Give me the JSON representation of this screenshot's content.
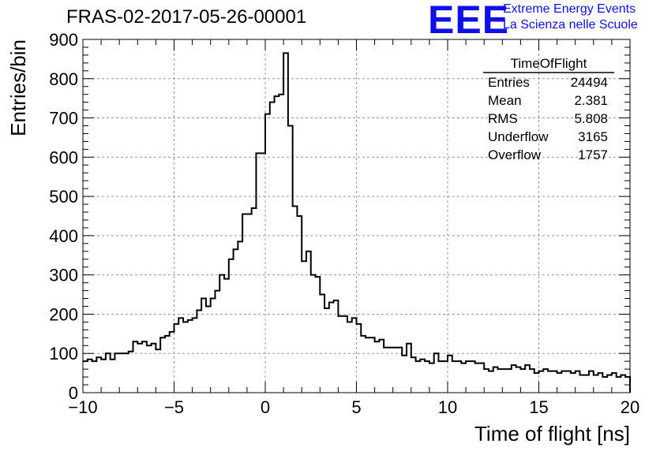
{
  "header": {
    "title": "FRAS-02-2017-05-26-00001",
    "logo_text": "EEE",
    "logo_line1": "Extreme Energy Events",
    "logo_line2": "La Scienza nelle Scuole"
  },
  "stats_box": {
    "title": "TimeOfFlight",
    "rows": [
      {
        "label": "Entries",
        "value": "24494"
      },
      {
        "label": "Mean",
        "value": "2.381"
      },
      {
        "label": "RMS",
        "value": "5.808"
      },
      {
        "label": "Underflow",
        "value": "3165"
      },
      {
        "label": "Overflow",
        "value": "1757"
      }
    ]
  },
  "chart_data": {
    "type": "histogram",
    "title": "FRAS-02-2017-05-26-00001",
    "xlabel": "Time of flight [ns]",
    "ylabel": "Entries/bin",
    "xlim": [
      -10,
      20
    ],
    "ylim": [
      0,
      900
    ],
    "x_ticks": [
      -10,
      -5,
      0,
      5,
      10,
      15,
      20
    ],
    "y_ticks": [
      0,
      100,
      200,
      300,
      400,
      500,
      600,
      700,
      800,
      900
    ],
    "grid": true,
    "line_color": "#000000",
    "bin_width": 0.25,
    "bin_start": -10,
    "values": [
      80,
      85,
      80,
      90,
      85,
      100,
      85,
      100,
      100,
      100,
      105,
      130,
      125,
      130,
      120,
      125,
      110,
      140,
      145,
      155,
      175,
      190,
      180,
      185,
      190,
      210,
      240,
      220,
      240,
      260,
      300,
      290,
      340,
      365,
      385,
      455,
      455,
      470,
      610,
      610,
      710,
      740,
      755,
      760,
      865,
      680,
      475,
      450,
      335,
      360,
      300,
      295,
      250,
      215,
      230,
      235,
      195,
      195,
      180,
      190,
      175,
      145,
      140,
      140,
      130,
      135,
      115,
      115,
      115,
      115,
      95,
      125,
      90,
      80,
      85,
      80,
      75,
      100,
      80,
      80,
      95,
      80,
      80,
      75,
      80,
      80,
      75,
      75,
      60,
      55,
      65,
      60,
      60,
      60,
      70,
      65,
      60,
      70,
      60,
      50,
      55,
      60,
      55,
      55,
      50,
      55,
      55,
      50,
      55,
      45,
      45,
      55,
      45,
      50,
      40,
      45,
      50,
      40,
      45,
      40
    ]
  }
}
